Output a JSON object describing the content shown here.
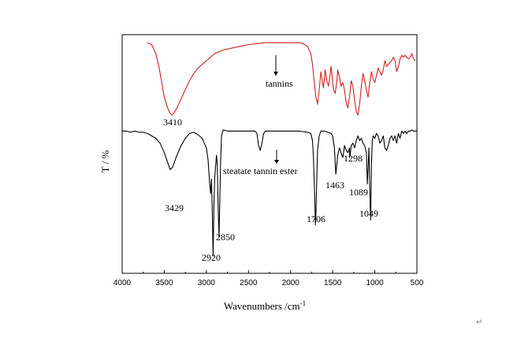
{
  "chart_data": {
    "type": "line",
    "xlabel": "Wavenumbers /cm",
    "xlabel_sup": "-1",
    "ylabel": "T / %",
    "xlim": [
      4000,
      500
    ],
    "xticks": [
      4000,
      3500,
      3000,
      2500,
      2000,
      1500,
      1000,
      500
    ],
    "grid": false,
    "colors": {
      "tannins": "#d42020",
      "ester": "#000000"
    },
    "series": [
      {
        "name": "tannins",
        "x": [
          3700,
          3650,
          3600,
          3560,
          3530,
          3500,
          3460,
          3430,
          3410,
          3390,
          3350,
          3300,
          3250,
          3200,
          3150,
          3100,
          3050,
          3000,
          2950,
          2900,
          2850,
          2800,
          2700,
          2600,
          2500,
          2400,
          2300,
          2200,
          2100,
          2000,
          1900,
          1850,
          1800,
          1760,
          1740,
          1720,
          1700,
          1680,
          1660,
          1640,
          1620,
          1610,
          1600,
          1590,
          1570,
          1550,
          1530,
          1520,
          1510,
          1500,
          1490,
          1470,
          1450,
          1440,
          1420,
          1400,
          1380,
          1360,
          1340,
          1320,
          1300,
          1280,
          1260,
          1240,
          1220,
          1200,
          1180,
          1160,
          1140,
          1120,
          1100,
          1080,
          1060,
          1040,
          1020,
          1000,
          980,
          960,
          940,
          920,
          900,
          880,
          860,
          840,
          820,
          800,
          780,
          760,
          740,
          720,
          700,
          680,
          660,
          640,
          620,
          600,
          580,
          560,
          540,
          520
        ],
        "y": [
          96,
          95,
          90,
          82,
          74,
          66,
          60,
          57,
          56,
          57,
          60,
          65,
          70,
          75,
          79,
          82,
          84,
          86,
          88,
          90,
          91,
          92,
          93,
          94,
          95,
          95.5,
          96,
          96,
          96,
          96,
          96,
          95.5,
          94,
          90,
          84,
          75,
          66,
          62,
          70,
          80,
          74,
          71,
          76,
          81,
          75,
          72,
          78,
          83,
          79,
          74,
          70,
          68,
          75,
          81,
          77,
          72,
          74,
          70,
          63,
          60,
          66,
          75,
          72,
          64,
          58,
          56,
          62,
          72,
          79,
          75,
          70,
          66,
          74,
          80,
          76,
          74,
          78,
          82,
          80,
          78,
          81,
          86,
          83,
          84,
          85,
          86,
          88,
          86,
          80,
          83,
          87,
          89,
          88,
          89,
          88,
          87,
          88,
          90,
          87,
          86
        ]
      },
      {
        "name": "steatate tannin ester",
        "x": [
          4000,
          3950,
          3900,
          3850,
          3800,
          3750,
          3700,
          3650,
          3600,
          3550,
          3500,
          3460,
          3430,
          3400,
          3360,
          3300,
          3250,
          3200,
          3150,
          3100,
          3050,
          3000,
          2980,
          2960,
          2950,
          2940,
          2930,
          2920,
          2910,
          2900,
          2880,
          2870,
          2860,
          2850,
          2840,
          2830,
          2820,
          2800,
          2750,
          2700,
          2600,
          2500,
          2420,
          2400,
          2380,
          2360,
          2340,
          2320,
          2300,
          2200,
          2100,
          2000,
          1900,
          1800,
          1760,
          1740,
          1730,
          1720,
          1710,
          1706,
          1700,
          1690,
          1680,
          1660,
          1640,
          1600,
          1560,
          1520,
          1500,
          1480,
          1470,
          1463,
          1455,
          1440,
          1420,
          1400,
          1380,
          1370,
          1360,
          1340,
          1320,
          1300,
          1298,
          1290,
          1280,
          1260,
          1240,
          1220,
          1200,
          1180,
          1160,
          1140,
          1120,
          1100,
          1089,
          1080,
          1070,
          1060,
          1049,
          1040,
          1030,
          1020,
          1000,
          980,
          960,
          940,
          920,
          900,
          880,
          860,
          840,
          820,
          800,
          780,
          760,
          740,
          720,
          700,
          680,
          660,
          640,
          620,
          600,
          580,
          560,
          540,
          520,
          500
        ],
        "y": [
          92,
          92,
          91.5,
          92,
          91.5,
          91.5,
          91,
          90,
          89,
          87,
          83,
          79,
          76,
          77,
          81,
          86,
          89,
          91,
          91.5,
          90.5,
          89,
          85,
          80,
          70,
          66,
          72,
          60,
          40,
          62,
          73,
          82,
          78,
          60,
          48,
          65,
          80,
          90,
          92.5,
          92,
          92,
          92,
          92,
          92,
          91,
          86,
          84,
          87,
          91,
          92,
          92,
          92,
          92,
          92,
          91.5,
          91,
          88,
          82,
          72,
          60,
          53,
          57,
          70,
          84,
          90,
          92,
          92,
          91.5,
          91,
          90,
          85,
          79,
          74,
          77,
          82,
          85,
          83,
          81,
          83,
          86,
          84,
          83,
          85,
          81,
          83,
          86,
          87,
          85,
          88,
          90,
          88,
          89,
          87,
          86,
          83,
          70,
          76,
          85,
          68,
          55,
          78,
          88,
          90,
          89,
          91,
          90,
          87,
          88,
          90,
          85,
          84,
          86,
          89,
          90,
          88,
          90,
          87,
          91,
          89,
          92,
          91,
          92,
          91,
          92,
          92,
          92.5,
          92,
          92,
          92
        ]
      }
    ],
    "labels": [
      {
        "text": "tannins",
        "series": "tannins"
      },
      {
        "text": "steatate tannin ester",
        "series": "steatate tannin ester"
      }
    ],
    "annotations": [
      "3410",
      "3429",
      "2920",
      "2850",
      "1706",
      "1463",
      "1298",
      "1089",
      "1049"
    ]
  },
  "return_glyph": "↵"
}
